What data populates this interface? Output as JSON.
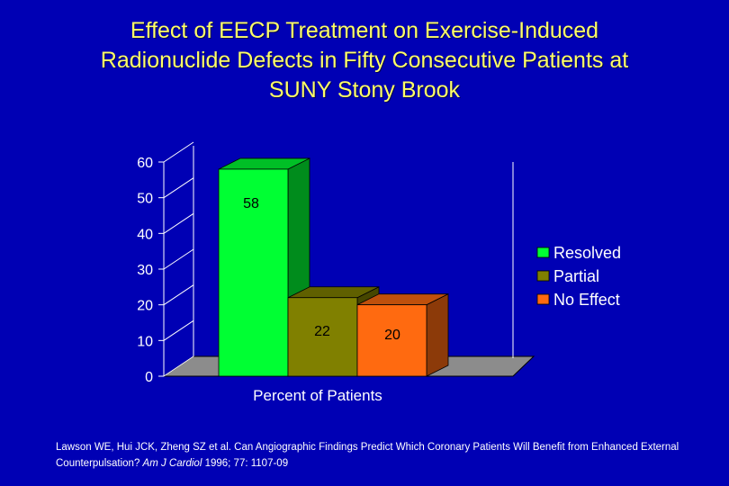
{
  "slide": {
    "title": "Effect of EECP Treatment on Exercise-Induced\nRadionuclide Defects in Fifty Consecutive Patients at\nSUNY Stony Brook",
    "citation_prefix": "Lawson WE, Hui JCK, Zheng SZ et al.  Can Angiographic Findings Predict Which Coronary Patients Will Benefit from Enhanced External Counterpulsation?",
    "citation_journal": "Am J Cardiol",
    "citation_suffix": "1996; 77: 1107-09"
  },
  "chart_data": {
    "type": "bar",
    "categories": [
      "Percent of Patients"
    ],
    "xlabel": "Percent of Patients",
    "ylabel": "",
    "ylim": [
      0,
      60
    ],
    "yticks": [
      0,
      10,
      20,
      30,
      40,
      50,
      60
    ],
    "grid": false,
    "legend": "right",
    "three_d": true,
    "series": [
      {
        "name": "Resolved",
        "values": [
          58
        ],
        "label": "58",
        "color": "#00ff33"
      },
      {
        "name": "Partial",
        "values": [
          22
        ],
        "label": "22",
        "color": "#808000"
      },
      {
        "name": "No Effect",
        "values": [
          20
        ],
        "label": "20",
        "color": "#ff6a10"
      }
    ]
  }
}
